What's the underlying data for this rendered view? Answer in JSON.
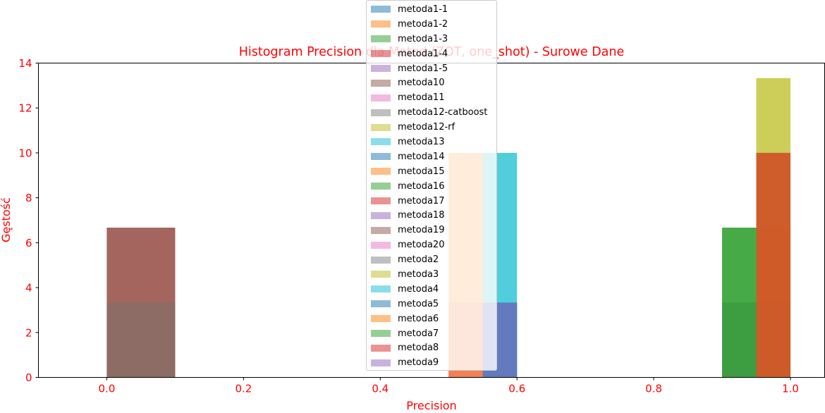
{
  "chart_data": {
    "type": "histogram",
    "title": "Histogram Precision dla Metod (ZOT, one_shot) - Surowe Dane",
    "xlabel": "Precision",
    "ylabel": "Gęstość",
    "xlim": [
      -0.1,
      1.05
    ],
    "ylim": [
      0,
      14
    ],
    "xticks": [
      "0.0",
      "0.2",
      "0.4",
      "0.6",
      "0.8",
      "1.0"
    ],
    "yticks": [
      "0",
      "2",
      "4",
      "6",
      "8",
      "10",
      "12",
      "14"
    ],
    "bar_opacity": 0.5,
    "legend_position": "upper center",
    "series": [
      {
        "name": "metoda1-1",
        "color": "#1f77b4",
        "bars": [
          {
            "x0": 0.0,
            "x1": 0.1,
            "y": 3.33
          },
          {
            "x0": 0.9,
            "x1": 1.0,
            "y": 3.33
          }
        ]
      },
      {
        "name": "metoda1-2",
        "color": "#ff7f0e",
        "bars": [
          {
            "x0": 0.0,
            "x1": 0.1,
            "y": 3.33
          },
          {
            "x0": 0.95,
            "x1": 1.0,
            "y": 6.67
          }
        ]
      },
      {
        "name": "metoda1-3",
        "color": "#2ca02c",
        "bars": [
          {
            "x0": 0.9,
            "x1": 0.95,
            "y": 6.67
          }
        ]
      },
      {
        "name": "metoda1-4",
        "color": "#d62728",
        "bars": [
          {
            "x0": 0.0,
            "x1": 0.1,
            "y": 6.67
          },
          {
            "x0": 0.95,
            "x1": 1.0,
            "y": 10
          }
        ]
      },
      {
        "name": "metoda1-5",
        "color": "#9467bd",
        "bars": [
          {
            "x0": 0.5,
            "x1": 0.55,
            "y": 3.33
          }
        ]
      },
      {
        "name": "metoda10",
        "color": "#8c564b",
        "bars": [
          {
            "x0": 0.0,
            "x1": 0.1,
            "y": 6.67
          }
        ]
      },
      {
        "name": "metoda11",
        "color": "#e377c2",
        "bars": [
          {
            "x0": 0.5,
            "x1": 0.55,
            "y": 3.33
          }
        ]
      },
      {
        "name": "metoda12-catboost",
        "color": "#7f7f7f",
        "bars": [
          {
            "x0": 0.9,
            "x1": 0.95,
            "y": 3.33
          }
        ]
      },
      {
        "name": "metoda12-rf",
        "color": "#bcbd22",
        "bars": [
          {
            "x0": 0.95,
            "x1": 1.0,
            "y": 13.33
          }
        ]
      },
      {
        "name": "metoda13",
        "color": "#17becf",
        "bars": [
          {
            "x0": 0.55,
            "x1": 0.6,
            "y": 10
          }
        ]
      },
      {
        "name": "metoda14",
        "color": "#1f77b4",
        "bars": [
          {
            "x0": 0.55,
            "x1": 0.6,
            "y": 3.33
          }
        ]
      },
      {
        "name": "metoda15",
        "color": "#ff7f0e",
        "bars": [
          {
            "x0": 0.5,
            "x1": 0.55,
            "y": 10
          }
        ]
      },
      {
        "name": "metoda16",
        "color": "#2ca02c",
        "bars": [
          {
            "x0": 0.9,
            "x1": 0.95,
            "y": 6.67
          }
        ]
      },
      {
        "name": "metoda17",
        "color": "#d62728",
        "bars": [
          {
            "x0": 0.95,
            "x1": 1.0,
            "y": 10
          }
        ]
      },
      {
        "name": "metoda18",
        "color": "#9467bd",
        "bars": [
          {
            "x0": 0.55,
            "x1": 0.6,
            "y": 3.33
          }
        ]
      },
      {
        "name": "metoda19",
        "color": "#8c564b",
        "bars": [
          {
            "x0": 0.0,
            "x1": 0.1,
            "y": 6.67
          }
        ]
      },
      {
        "name": "metoda20",
        "color": "#e377c2",
        "bars": [
          {
            "x0": 0.5,
            "x1": 0.55,
            "y": 3.33
          }
        ]
      },
      {
        "name": "metoda2",
        "color": "#7f7f7f",
        "bars": [
          {
            "x0": 0.0,
            "x1": 0.1,
            "y": 3.33
          }
        ]
      },
      {
        "name": "metoda3",
        "color": "#bcbd22",
        "bars": [
          {
            "x0": 0.95,
            "x1": 1.0,
            "y": 13.33
          }
        ]
      },
      {
        "name": "metoda4",
        "color": "#17becf",
        "bars": [
          {
            "x0": 0.55,
            "x1": 0.6,
            "y": 10
          }
        ]
      },
      {
        "name": "metoda5",
        "color": "#1f77b4",
        "bars": [
          {
            "x0": 0.55,
            "x1": 0.6,
            "y": 3.33
          }
        ]
      },
      {
        "name": "metoda6",
        "color": "#ff7f0e",
        "bars": [
          {
            "x0": 0.5,
            "x1": 0.55,
            "y": 10
          }
        ]
      },
      {
        "name": "metoda7",
        "color": "#2ca02c",
        "bars": [
          {
            "x0": 0.9,
            "x1": 0.95,
            "y": 6.67
          }
        ]
      },
      {
        "name": "metoda8",
        "color": "#d62728",
        "bars": [
          {
            "x0": 0.95,
            "x1": 1.0,
            "y": 10
          }
        ]
      },
      {
        "name": "metoda9",
        "color": "#9467bd",
        "bars": [
          {
            "x0": 0.55,
            "x1": 0.6,
            "y": 3.33
          }
        ]
      }
    ]
  },
  "colors": {
    "label_color": "#ff0000",
    "axis_color": "#000000"
  }
}
